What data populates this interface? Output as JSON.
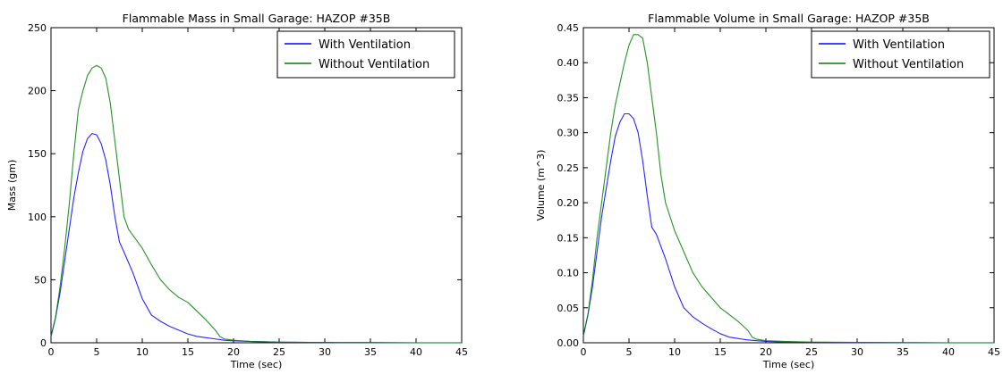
{
  "charts": [
    {
      "title": "Flammable Mass in Small Garage: HAZOP #35B",
      "xlabel": "Time (sec)",
      "ylabel": "Mass (gm)",
      "xlim": [
        0,
        45
      ],
      "ylim": [
        0,
        250
      ],
      "x_ticks": [
        "0",
        "5",
        "10",
        "15",
        "20",
        "25",
        "30",
        "35",
        "40",
        "45"
      ],
      "y_ticks": [
        "0",
        "50",
        "100",
        "150",
        "200",
        "250"
      ],
      "legend": [
        "With Ventilation",
        "Without Ventilation"
      ]
    },
    {
      "title": "Flammable Volume in Small Garage: HAZOP #35B",
      "xlabel": "Time (sec)",
      "ylabel": "Volume (m^3)",
      "xlim": [
        0,
        45
      ],
      "ylim": [
        0,
        0.45
      ],
      "x_ticks": [
        "0",
        "5",
        "10",
        "15",
        "20",
        "25",
        "30",
        "35",
        "40",
        "45"
      ],
      "y_ticks": [
        "0.00",
        "0.05",
        "0.10",
        "0.15",
        "0.20",
        "0.25",
        "0.30",
        "0.35",
        "0.40",
        "0.45"
      ],
      "legend": [
        "With Ventilation",
        "Without Ventilation"
      ]
    }
  ],
  "chart_data": [
    {
      "type": "line",
      "title": "Flammable Mass in Small Garage: HAZOP #35B",
      "xlabel": "Time (sec)",
      "ylabel": "Mass (gm)",
      "xlim": [
        0,
        45
      ],
      "ylim": [
        0,
        250
      ],
      "grid": false,
      "legend_position": "top-right",
      "series": [
        {
          "name": "With Ventilation",
          "color": "#0000ff",
          "x": [
            0,
            0.5,
            1,
            1.5,
            2,
            2.5,
            3,
            3.5,
            4,
            4.5,
            5,
            5.5,
            6,
            6.5,
            7,
            7.5,
            8,
            9,
            10,
            11,
            12,
            13,
            14,
            15,
            16,
            17,
            18,
            19,
            20,
            22,
            25,
            30,
            35,
            40,
            45
          ],
          "y": [
            5,
            20,
            40,
            65,
            90,
            115,
            135,
            152,
            162,
            166,
            165,
            158,
            145,
            125,
            100,
            80,
            72,
            55,
            35,
            22,
            17,
            13,
            10,
            7,
            5,
            4,
            3,
            2,
            1.5,
            1,
            0.5,
            0.2,
            0.1,
            0,
            0
          ]
        },
        {
          "name": "Without Ventilation",
          "color": "#008000",
          "x": [
            0,
            0.5,
            1,
            1.5,
            2,
            2.5,
            3,
            3.5,
            4,
            4.5,
            5,
            5.5,
            6,
            6.5,
            7,
            7.5,
            8,
            8.5,
            9,
            10,
            11,
            12,
            13,
            14,
            15,
            16,
            17,
            18,
            18.5,
            19,
            20,
            22,
            25,
            30,
            35,
            40,
            45
          ],
          "y": [
            5,
            20,
            45,
            75,
            110,
            150,
            185,
            200,
            212,
            218,
            220,
            218,
            210,
            190,
            160,
            130,
            100,
            90,
            85,
            75,
            62,
            50,
            42,
            36,
            32,
            25,
            18,
            10,
            5,
            3,
            2,
            1,
            0.5,
            0.2,
            0.1,
            0,
            0
          ]
        }
      ]
    },
    {
      "type": "line",
      "title": "Flammable Volume in Small Garage: HAZOP #35B",
      "xlabel": "Time (sec)",
      "ylabel": "Volume (m^3)",
      "xlim": [
        0,
        45
      ],
      "ylim": [
        0,
        0.45
      ],
      "grid": false,
      "legend_position": "top-right",
      "series": [
        {
          "name": "With Ventilation",
          "color": "#0000ff",
          "x": [
            0,
            0.5,
            1,
            1.5,
            2,
            2.5,
            3,
            3.5,
            4,
            4.5,
            5,
            5.5,
            6,
            6.5,
            7,
            7.5,
            8,
            9,
            10,
            11,
            12,
            13,
            14,
            15,
            16,
            17,
            18,
            19,
            20,
            22,
            25,
            30,
            35,
            40,
            45
          ],
          "y": [
            0.01,
            0.04,
            0.08,
            0.13,
            0.18,
            0.22,
            0.26,
            0.295,
            0.315,
            0.327,
            0.327,
            0.32,
            0.3,
            0.26,
            0.21,
            0.165,
            0.155,
            0.12,
            0.08,
            0.05,
            0.037,
            0.028,
            0.02,
            0.013,
            0.008,
            0.006,
            0.004,
            0.003,
            0.002,
            0.001,
            0.0005,
            0.0002,
            0.0001,
            0,
            0
          ]
        },
        {
          "name": "Without Ventilation",
          "color": "#008000",
          "x": [
            0,
            0.5,
            1,
            1.5,
            2,
            2.5,
            3,
            3.5,
            4,
            4.5,
            5,
            5.5,
            6,
            6.5,
            7,
            7.5,
            8,
            8.5,
            9,
            10,
            11,
            12,
            13,
            14,
            15,
            16,
            17,
            18,
            18.5,
            19,
            20,
            22,
            25,
            30,
            35,
            40,
            45
          ],
          "y": [
            0.01,
            0.04,
            0.09,
            0.15,
            0.2,
            0.25,
            0.3,
            0.34,
            0.37,
            0.4,
            0.425,
            0.44,
            0.44,
            0.435,
            0.4,
            0.35,
            0.3,
            0.24,
            0.2,
            0.16,
            0.13,
            0.1,
            0.08,
            0.065,
            0.05,
            0.04,
            0.03,
            0.018,
            0.008,
            0.005,
            0.003,
            0.002,
            0.001,
            0.0005,
            0.0002,
            0,
            0
          ]
        }
      ]
    }
  ]
}
